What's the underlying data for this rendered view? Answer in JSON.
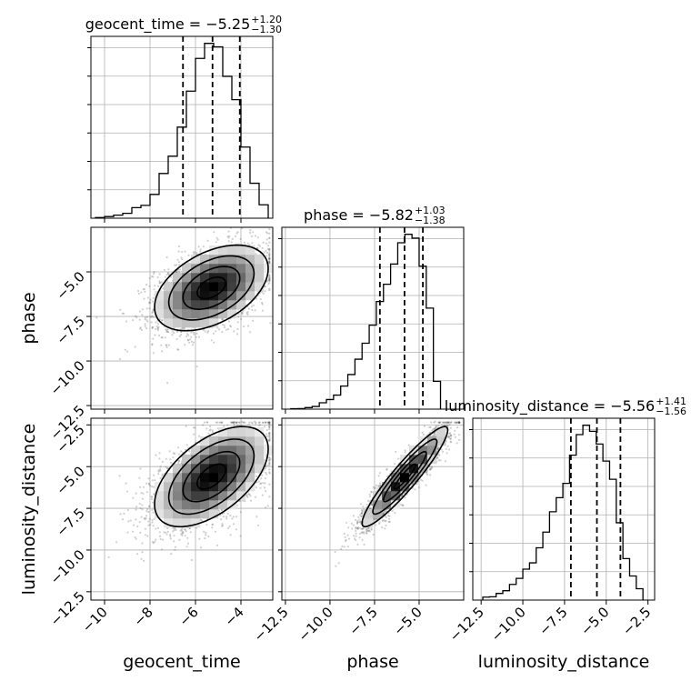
{
  "chart_data": {
    "type": "corner",
    "parameters": [
      "geocent_time",
      "phase",
      "luminosity_distance"
    ],
    "axis_labels": {
      "x": [
        "geocent_time",
        "phase",
        "luminosity_distance"
      ],
      "y": [
        "phase",
        "luminosity_distance"
      ]
    },
    "ranges": {
      "geocent_time": [
        -10.6,
        -2.6
      ],
      "phase": [
        -12.7,
        -2.5
      ],
      "luminosity_distance": [
        -13.0,
        -2.1
      ]
    },
    "ticks": {
      "geocent_time": [
        -10,
        -8,
        -6,
        -4
      ],
      "phase": [
        -12.5,
        -10.0,
        -7.5,
        -5.0
      ],
      "phase_y": [
        -12.5,
        -10.0,
        -7.5,
        -5.0
      ],
      "luminosity_distance": [
        -12.5,
        -10.0,
        -7.5,
        -5.0,
        -2.5
      ]
    },
    "tick_labels": {
      "geocent_time": [
        "−10",
        "−8",
        "−6",
        "−4"
      ],
      "phase": [
        "−12.5",
        "−10.0",
        "−7.5",
        "−5.0"
      ],
      "phase_y": [
        "−12.5",
        "−10.0",
        "−7.5",
        "−5.0"
      ],
      "luminosity_distance": [
        "−12.5",
        "−10.0",
        "−7.5",
        "−5.0",
        "−2.5"
      ]
    },
    "titles": [
      {
        "name": "geocent_time = −5.25",
        "sup": "+1.20",
        "sub": "−1.30"
      },
      {
        "name": "phase = −5.82",
        "sup": "+1.03",
        "sub": "−1.38"
      },
      {
        "name": "luminosity_distance = −5.56",
        "sup": "+1.41",
        "sub": "−1.56"
      }
    ],
    "quantiles": {
      "geocent_time": [
        -6.55,
        -5.25,
        -4.05
      ],
      "phase": [
        -7.2,
        -5.82,
        -4.79
      ],
      "luminosity_distance": [
        -7.12,
        -5.56,
        -4.15
      ]
    },
    "histograms": {
      "geocent_time": {
        "edges": [
          -10.4,
          -10.0,
          -9.6,
          -9.2,
          -8.8,
          -8.4,
          -8.0,
          -7.6,
          -7.2,
          -6.8,
          -6.4,
          -6.0,
          -5.6,
          -5.2,
          -4.8,
          -4.4,
          -4.0,
          -3.6,
          -3.2,
          -2.8
        ],
        "counts": [
          0.3,
          0.8,
          1.5,
          2.4,
          5.2,
          6.3,
          11.7,
          22.0,
          30.5,
          44.8,
          62.5,
          78.6,
          86.0,
          84.3,
          69.8,
          58.3,
          35.0,
          17.2,
          6.6
        ]
      },
      "phase": {
        "edges": [
          -12.2,
          -11.8,
          -11.4,
          -11.0,
          -10.6,
          -10.2,
          -9.8,
          -9.4,
          -9.0,
          -8.6,
          -8.2,
          -7.8,
          -7.4,
          -7.0,
          -6.6,
          -6.2,
          -5.8,
          -5.4,
          -5.0,
          -4.6,
          -4.2,
          -3.8
        ],
        "counts": [
          0.2,
          0.3,
          0.8,
          1.4,
          3.3,
          5.0,
          7.3,
          12.0,
          18.0,
          26.0,
          34.3,
          43.7,
          56.0,
          65.0,
          75.5,
          86.6,
          91.0,
          89.0,
          74.4,
          52.6,
          14.5
        ]
      },
      "luminosity_distance": {
        "edges": [
          -12.4,
          -12.0,
          -11.6,
          -11.2,
          -10.8,
          -10.4,
          -10.0,
          -9.6,
          -9.2,
          -8.8,
          -8.4,
          -8.0,
          -7.6,
          -7.2,
          -6.8,
          -6.4,
          -6.0,
          -5.6,
          -5.2,
          -4.8,
          -4.4,
          -4.0,
          -3.6,
          -3.2,
          -2.8
        ],
        "counts": [
          1.5,
          1.7,
          3.4,
          4.8,
          8.0,
          11.1,
          15.8,
          19.0,
          26.7,
          34.7,
          45.1,
          52.3,
          59.6,
          74.0,
          84.5,
          89.3,
          86.2,
          79.7,
          71.0,
          61.7,
          39.5,
          21.2,
          12.3,
          5.8
        ]
      }
    },
    "scatter_pairs": [
      {
        "x": "geocent_time",
        "y": "phase",
        "mean": [
          -5.3,
          -5.9
        ],
        "sd": [
          1.25,
          1.2
        ],
        "corr": 0.45
      },
      {
        "x": "geocent_time",
        "y": "luminosity_distance",
        "mean": [
          -5.3,
          -5.6
        ],
        "sd": [
          1.25,
          1.5
        ],
        "corr": 0.55
      },
      {
        "x": "phase",
        "y": "luminosity_distance",
        "mean": [
          -5.8,
          -5.6
        ],
        "sd": [
          1.2,
          1.5
        ],
        "corr": 0.93
      }
    ],
    "contour_levels": [
      0.118,
      0.393,
      0.675,
      0.865
    ],
    "grid": true
  }
}
